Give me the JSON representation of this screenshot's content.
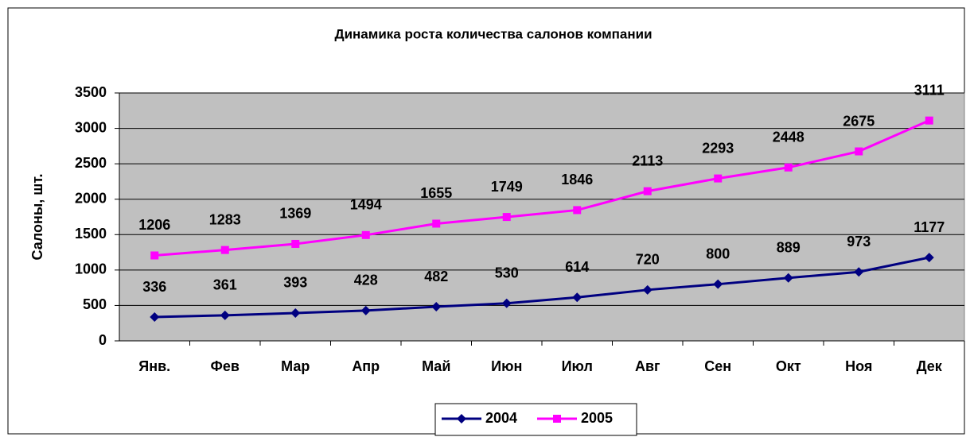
{
  "chart_data": {
    "type": "line",
    "title": "Динамика роста количества салонов компании",
    "y_label": "Салоны, шт.",
    "categories": [
      "Янв.",
      "Фев",
      "Мар",
      "Апр",
      "Май",
      "Июн",
      "Июл",
      "Авг",
      "Сен",
      "Окт",
      "Ноя",
      "Дек"
    ],
    "series": [
      {
        "name": "2004",
        "color": "#000080",
        "marker": "diamond",
        "values": [
          336,
          361,
          393,
          428,
          482,
          530,
          614,
          720,
          800,
          889,
          973,
          1177
        ]
      },
      {
        "name": "2005",
        "color": "#ff00ff",
        "marker": "square",
        "values": [
          1206,
          1283,
          1369,
          1494,
          1655,
          1749,
          1846,
          2113,
          2293,
          2448,
          2675,
          3111
        ]
      }
    ],
    "ylim": [
      0,
      3500
    ],
    "yticks": [
      0,
      500,
      1000,
      1500,
      2000,
      2500,
      3000,
      3500
    ],
    "grid": true,
    "legend": "bottom"
  }
}
